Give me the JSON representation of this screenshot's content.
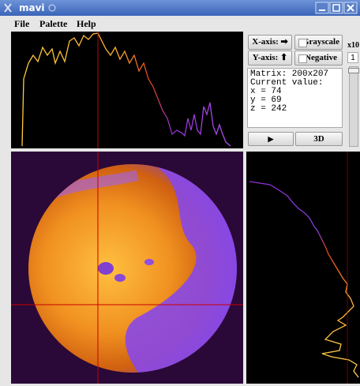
{
  "window": {
    "title": "mavi"
  },
  "menu": [
    "File",
    "Palette",
    "Help"
  ],
  "controls": {
    "x_axis": "X-axis: ➡",
    "y_axis": "Y-axis: ⬆",
    "grayscale": "Grayscale",
    "negative": "Negative",
    "zoom": "x10",
    "zoom_value": "1",
    "play": "▶",
    "three_d": "3D"
  },
  "info": [
    "Matrix: 200x207",
    "Current value:",
    "x = 74",
    "y = 69",
    "z = 242"
  ]
}
